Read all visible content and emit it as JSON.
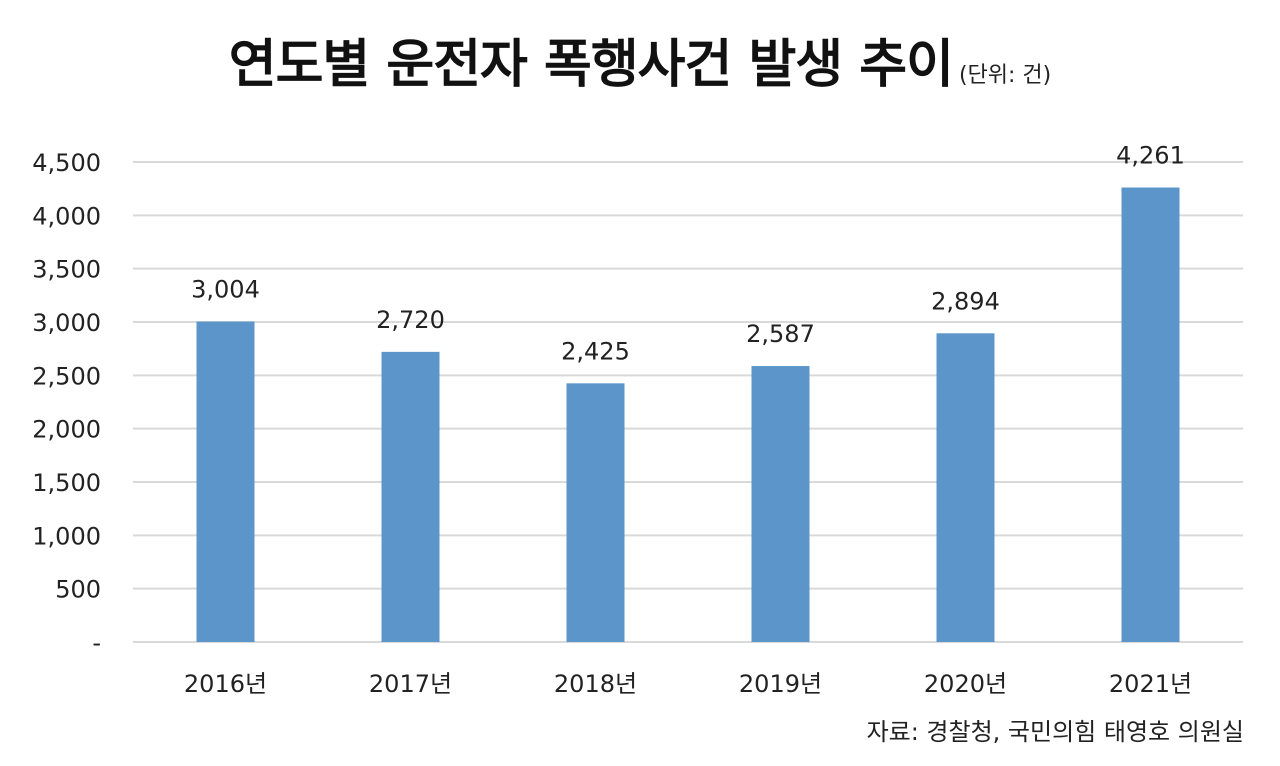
{
  "chart_data": {
    "type": "bar",
    "title": "연도별 운전자 폭행사건 발생 추이",
    "unit_note": "(단위: 건)",
    "categories": [
      "2016년",
      "2017년",
      "2018년",
      "2019년",
      "2020년",
      "2021년"
    ],
    "values": [
      3004,
      2720,
      2425,
      2587,
      2894,
      4261
    ],
    "data_labels": [
      "3,004",
      "2,720",
      "2,425",
      "2,587",
      "2,894",
      "4,261"
    ],
    "ylim": [
      0,
      4500
    ],
    "yticks": [
      0,
      500,
      1000,
      1500,
      2000,
      2500,
      3000,
      3500,
      4000,
      4500
    ],
    "ytick_labels": [
      "-",
      "500",
      "1,000",
      "1,500",
      "2,000",
      "2,500",
      "3,000",
      "3,500",
      "4,000",
      "4,500"
    ],
    "grid": true,
    "legend": "none",
    "bar_color": "#5b95c9",
    "grid_color": "#d9d9d9",
    "source": "자료: 경찰청, 국민의힘 태영호 의원실"
  }
}
